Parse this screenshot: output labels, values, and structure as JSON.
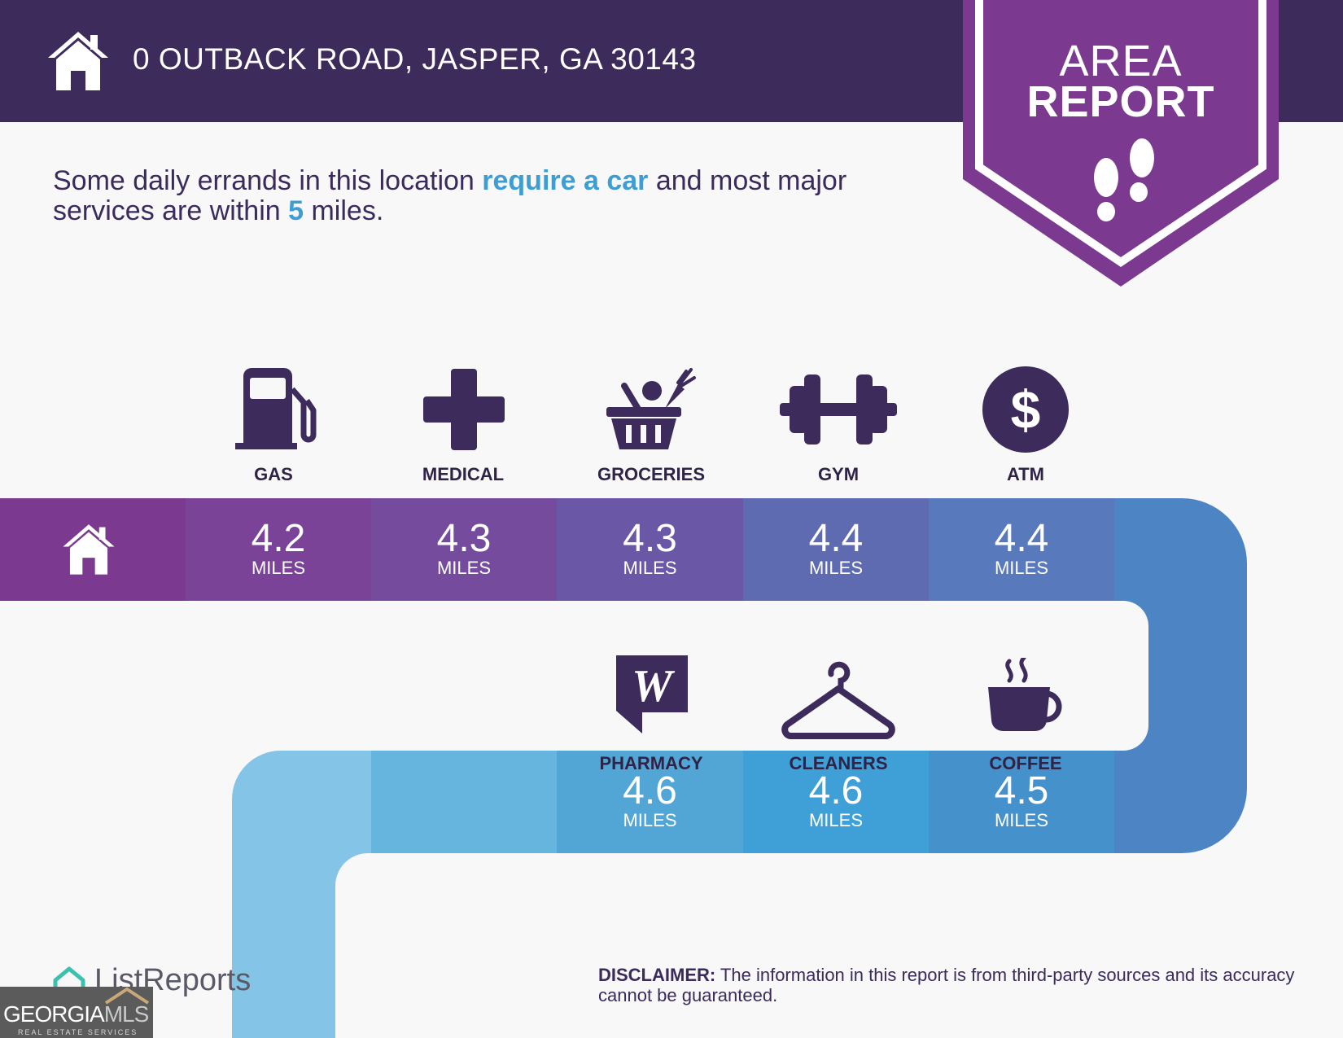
{
  "header": {
    "address": "0 OUTBACK ROAD, JASPER, GA 30143"
  },
  "banner": {
    "line1": "AREA",
    "line2": "REPORT"
  },
  "intro": {
    "part1": "Some daily errands in this location ",
    "highlight1": "require a car",
    "part2": " and most major services are within ",
    "highlight2": "5",
    "part3": " miles."
  },
  "services_row1": [
    {
      "label": "GAS",
      "icon": "gas-pump-icon",
      "distance": "4.2",
      "unit": "MILES"
    },
    {
      "label": "MEDICAL",
      "icon": "medical-cross-icon",
      "distance": "4.3",
      "unit": "MILES"
    },
    {
      "label": "GROCERIES",
      "icon": "grocery-basket-icon",
      "distance": "4.3",
      "unit": "MILES"
    },
    {
      "label": "GYM",
      "icon": "dumbbell-icon",
      "distance": "4.4",
      "unit": "MILES"
    },
    {
      "label": "ATM",
      "icon": "dollar-icon",
      "distance": "4.4",
      "unit": "MILES"
    }
  ],
  "services_row2": [
    {
      "label": "PHARMACY",
      "icon": "pharmacy-w-icon",
      "distance": "4.6",
      "unit": "MILES"
    },
    {
      "label": "CLEANERS",
      "icon": "hanger-icon",
      "distance": "4.6",
      "unit": "MILES"
    },
    {
      "label": "COFFEE",
      "icon": "coffee-cup-icon",
      "distance": "4.5",
      "unit": "MILES"
    }
  ],
  "colors": {
    "header": "#3d2b5c",
    "banner": "#7b3a90",
    "accent": "#3e9dd1",
    "icon": "#3d2b5c"
  },
  "disclaimer": {
    "label": "DISCLAIMER:",
    "text": " The information in this report is from third-party sources and its accuracy cannot be guaranteed."
  },
  "branding": {
    "listreports": "ListReports",
    "gmls_bold": "GEORGIA",
    "gmls_light": "MLS",
    "gmls_sub": "REAL ESTATE SERVICES"
  }
}
